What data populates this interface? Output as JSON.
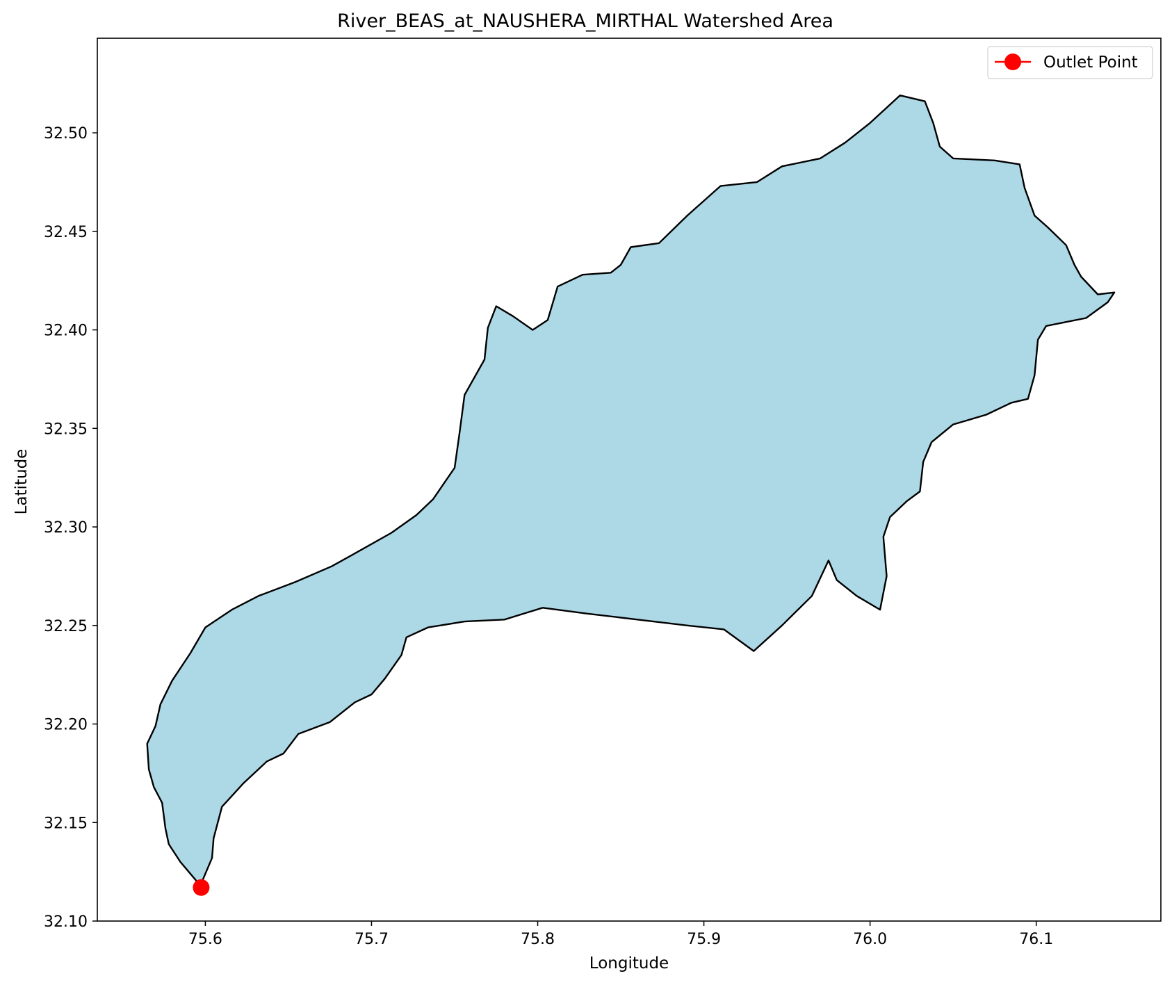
{
  "chart_data": {
    "type": "map",
    "title": "River_BEAS_at_NAUSHERA_MIRTHAL Watershed Area",
    "xlabel": "Longitude",
    "ylabel": "Latitude",
    "xlim": [
      75.535,
      76.175
    ],
    "ylim": [
      32.1,
      32.548
    ],
    "xticks": [
      75.6,
      75.7,
      75.8,
      75.9,
      76.0,
      76.1
    ],
    "xtick_labels": [
      "75.6",
      "75.7",
      "75.8",
      "75.9",
      "76.0",
      "76.1"
    ],
    "yticks": [
      32.1,
      32.15,
      32.2,
      32.25,
      32.3,
      32.35,
      32.4,
      32.45,
      32.5
    ],
    "ytick_labels": [
      "32.10",
      "32.15",
      "32.20",
      "32.25",
      "32.30",
      "32.35",
      "32.40",
      "32.45",
      "32.50"
    ],
    "grid": false,
    "legend": {
      "placement": "upper-right",
      "entries": [
        {
          "label": "Outlet Point",
          "color": "#ff0000",
          "marker": "circle"
        }
      ]
    },
    "watershed": {
      "fill": "#add8e6",
      "edge": "#000000",
      "boundary": [
        [
          75.597,
          32.118
        ],
        [
          75.592,
          32.123
        ],
        [
          75.585,
          32.13
        ],
        [
          75.578,
          32.139
        ],
        [
          75.576,
          32.147
        ],
        [
          75.574,
          32.16
        ],
        [
          75.569,
          32.168
        ],
        [
          75.566,
          32.177
        ],
        [
          75.565,
          32.19
        ],
        [
          75.57,
          32.199
        ],
        [
          75.573,
          32.21
        ],
        [
          75.58,
          32.222
        ],
        [
          75.591,
          32.236
        ],
        [
          75.6,
          32.249
        ],
        [
          75.616,
          32.258
        ],
        [
          75.632,
          32.265
        ],
        [
          75.654,
          32.272
        ],
        [
          75.676,
          32.28
        ],
        [
          75.693,
          32.288
        ],
        [
          75.712,
          32.297
        ],
        [
          75.727,
          32.306
        ],
        [
          75.737,
          32.314
        ],
        [
          75.75,
          32.33
        ],
        [
          75.753,
          32.348
        ],
        [
          75.756,
          32.367
        ],
        [
          75.768,
          32.385
        ],
        [
          75.77,
          32.401
        ],
        [
          75.775,
          32.412
        ],
        [
          75.785,
          32.407
        ],
        [
          75.797,
          32.4
        ],
        [
          75.806,
          32.405
        ],
        [
          75.812,
          32.422
        ],
        [
          75.827,
          32.428
        ],
        [
          75.844,
          32.429
        ],
        [
          75.85,
          32.433
        ],
        [
          75.856,
          32.442
        ],
        [
          75.873,
          32.444
        ],
        [
          75.89,
          32.458
        ],
        [
          75.91,
          32.473
        ],
        [
          75.932,
          32.475
        ],
        [
          75.947,
          32.483
        ],
        [
          75.97,
          32.487
        ],
        [
          75.985,
          32.495
        ],
        [
          76.0,
          32.505
        ],
        [
          76.018,
          32.519
        ],
        [
          76.033,
          32.516
        ],
        [
          76.038,
          32.505
        ],
        [
          76.042,
          32.493
        ],
        [
          76.05,
          32.487
        ],
        [
          76.075,
          32.486
        ],
        [
          76.09,
          32.484
        ],
        [
          76.093,
          32.472
        ],
        [
          76.099,
          32.458
        ],
        [
          76.107,
          32.452
        ],
        [
          76.118,
          32.443
        ],
        [
          76.123,
          32.433
        ],
        [
          76.127,
          32.427
        ],
        [
          76.137,
          32.418
        ],
        [
          76.147,
          32.419
        ],
        [
          76.143,
          32.414
        ],
        [
          76.13,
          32.406
        ],
        [
          76.118,
          32.404
        ],
        [
          76.106,
          32.402
        ],
        [
          76.101,
          32.395
        ],
        [
          76.099,
          32.377
        ],
        [
          76.095,
          32.365
        ],
        [
          76.085,
          32.363
        ],
        [
          76.07,
          32.357
        ],
        [
          76.05,
          32.352
        ],
        [
          76.037,
          32.343
        ],
        [
          76.032,
          32.333
        ],
        [
          76.03,
          32.318
        ],
        [
          76.022,
          32.313
        ],
        [
          76.012,
          32.305
        ],
        [
          76.008,
          32.295
        ],
        [
          76.01,
          32.275
        ],
        [
          76.006,
          32.258
        ],
        [
          75.992,
          32.265
        ],
        [
          75.98,
          32.273
        ],
        [
          75.975,
          32.283
        ],
        [
          75.965,
          32.265
        ],
        [
          75.947,
          32.25
        ],
        [
          75.93,
          32.237
        ],
        [
          75.912,
          32.248
        ],
        [
          75.89,
          32.25
        ],
        [
          75.86,
          32.253
        ],
        [
          75.83,
          32.256
        ],
        [
          75.803,
          32.259
        ],
        [
          75.78,
          32.253
        ],
        [
          75.756,
          32.252
        ],
        [
          75.734,
          32.249
        ],
        [
          75.721,
          32.244
        ],
        [
          75.718,
          32.235
        ],
        [
          75.708,
          32.223
        ],
        [
          75.7,
          32.215
        ],
        [
          75.69,
          32.211
        ],
        [
          75.675,
          32.201
        ],
        [
          75.656,
          32.195
        ],
        [
          75.647,
          32.185
        ],
        [
          75.637,
          32.181
        ],
        [
          75.623,
          32.17
        ],
        [
          75.61,
          32.158
        ],
        [
          75.605,
          32.142
        ],
        [
          75.604,
          32.132
        ],
        [
          75.597,
          32.118
        ]
      ]
    },
    "outlet_point": {
      "lon": 75.5975,
      "lat": 32.117,
      "color": "#ff0000"
    }
  }
}
